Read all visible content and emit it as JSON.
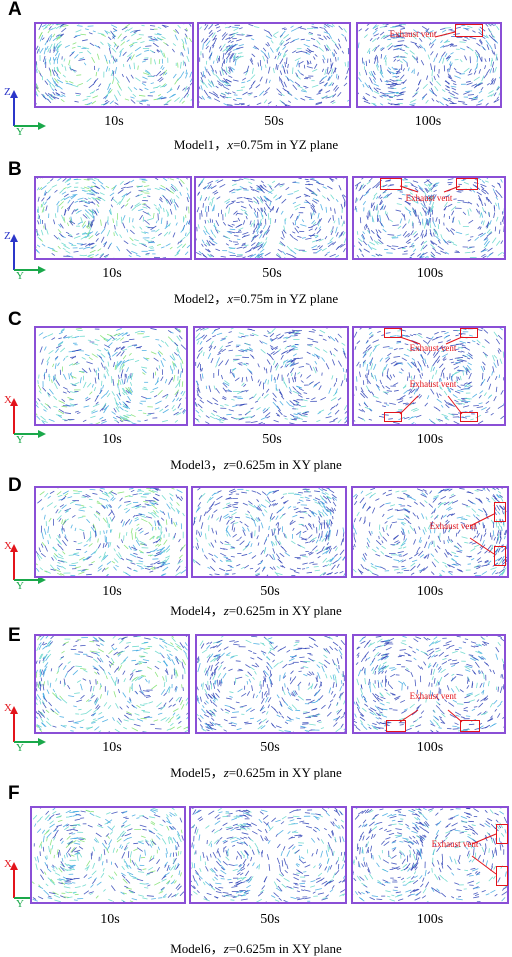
{
  "panels": [
    {
      "letter": "A",
      "caption_model": "Model1，",
      "caption_var": "x",
      "caption_rest": "=0.75m in YZ plane",
      "axis_v": "Z",
      "axis_h": "Y",
      "axis_v_color": "#2b36c9",
      "times": [
        "10s",
        "50s",
        "100s"
      ],
      "vent_label": "Exhaust vent"
    },
    {
      "letter": "B",
      "caption_model": "Model2，",
      "caption_var": "x",
      "caption_rest": "=0.75m in YZ plane",
      "axis_v": "Z",
      "axis_h": "Y",
      "axis_v_color": "#2b36c9",
      "times": [
        "10s",
        "50s",
        "100s"
      ],
      "vent_label": "Exhaust vent"
    },
    {
      "letter": "C",
      "caption_model": "Model3，",
      "caption_var": "z",
      "caption_rest": "=0.625m in XY plane",
      "axis_v": "X",
      "axis_h": "Y",
      "axis_v_color": "#e3141b",
      "times": [
        "10s",
        "50s",
        "100s"
      ],
      "vent_label": "Exhaust vent"
    },
    {
      "letter": "D",
      "caption_model": "Model4，",
      "caption_var": "z",
      "caption_rest": "=0.625m in XY plane",
      "axis_v": "X",
      "axis_h": "Y",
      "axis_v_color": "#e3141b",
      "times": [
        "10s",
        "50s",
        "100s"
      ],
      "vent_label": "Exhaust vent"
    },
    {
      "letter": "E",
      "caption_model": "Model5，",
      "caption_var": "z",
      "caption_rest": "=0.625m in XY plane",
      "axis_v": "X",
      "axis_h": "Y",
      "axis_v_color": "#e3141b",
      "times": [
        "10s",
        "50s",
        "100s"
      ],
      "vent_label": "Exhaust vent"
    },
    {
      "letter": "F",
      "caption_model": "Model6，",
      "caption_var": "z",
      "caption_rest": "=0.625m in XY plane",
      "axis_v": "X",
      "axis_h": "Y",
      "axis_v_color": "#e3141b",
      "times": [
        "10s",
        "50s",
        "100s"
      ],
      "vent_label": "Exhaust vent"
    }
  ],
  "colors": {
    "frame": "#8a4fd6",
    "vent": "#e3141b",
    "axis_y": "#1aa84a",
    "vector_dark": "#2b3fb5",
    "vector_mid": "#3aa6e0",
    "vector_light": "#5fd6c8",
    "vector_green": "#7be06a"
  }
}
